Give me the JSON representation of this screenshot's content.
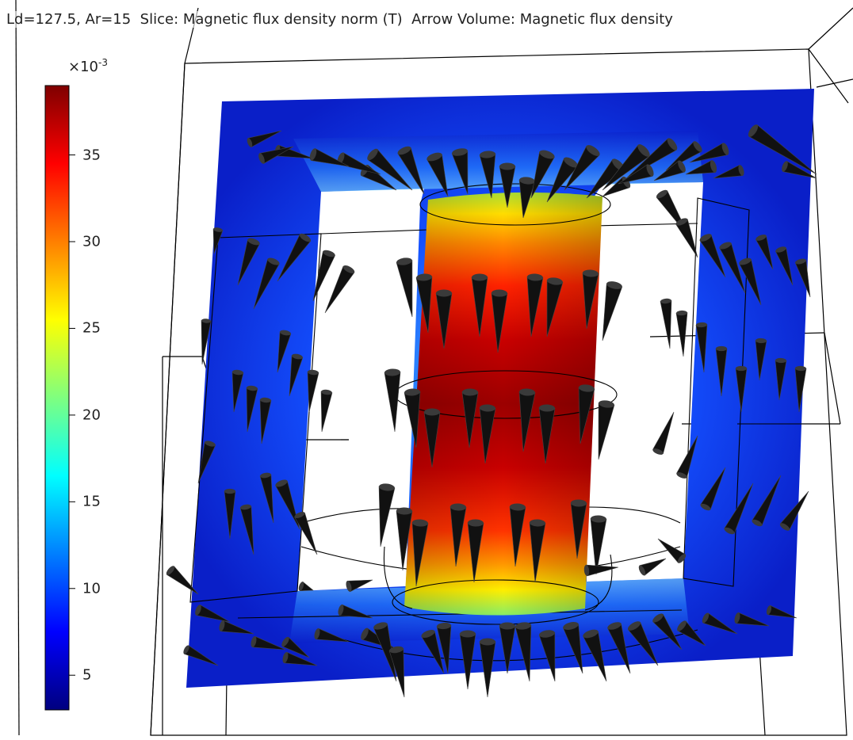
{
  "title": {
    "prefix": "Ld=127.5, Ar=15",
    "slice": "Slice: Magnetic flux density norm (T)",
    "arrow": "Arrow Volume: Magnetic flux density"
  },
  "colorbar": {
    "multiplier_base": "×10",
    "multiplier_exp": "-3",
    "range": [
      3,
      39
    ],
    "ticks": [
      {
        "value": 35,
        "label": "35"
      },
      {
        "value": 30,
        "label": "30"
      },
      {
        "value": 25,
        "label": "25"
      },
      {
        "value": 20,
        "label": "20"
      },
      {
        "value": 15,
        "label": "15"
      },
      {
        "value": 10,
        "label": "10"
      },
      {
        "value": 5,
        "label": "5"
      }
    ],
    "colormap": [
      "#00007f",
      "#0000ff",
      "#007fff",
      "#00ffff",
      "#7fff7f",
      "#ffff00",
      "#ff7f00",
      "#ff0000",
      "#7f0000"
    ]
  },
  "colors": {
    "core_low": "#1a3bff",
    "core_high": "#b00000",
    "arrow": "#1a1a1a",
    "wireframe": "#000000"
  }
}
